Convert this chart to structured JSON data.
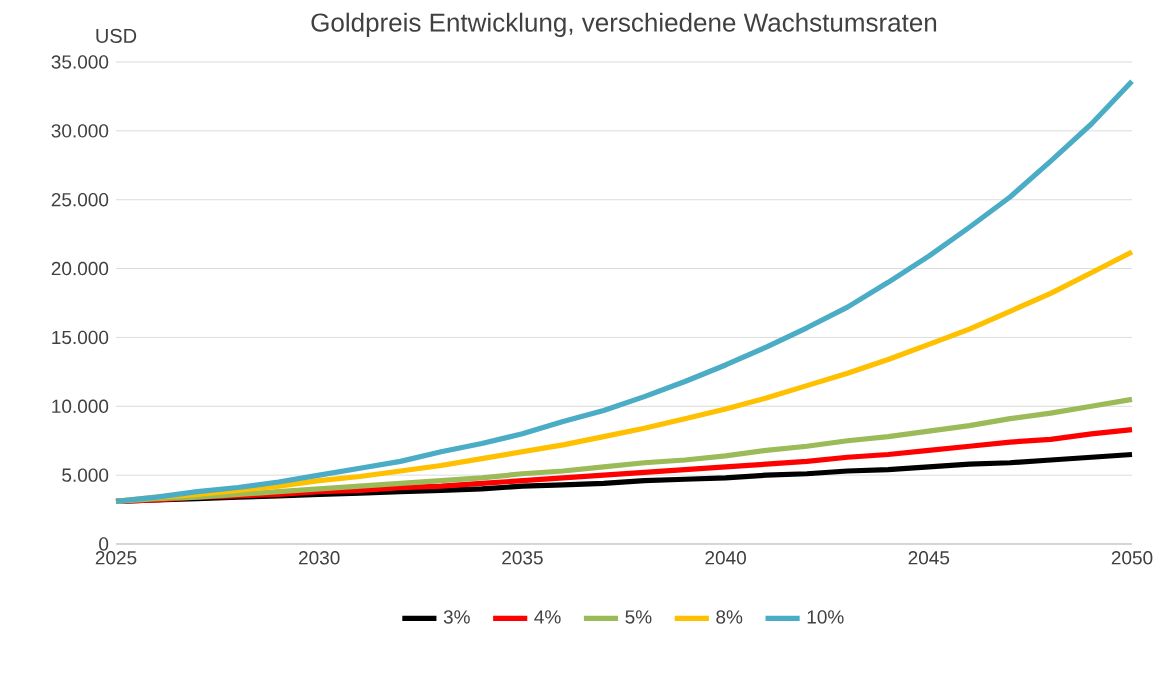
{
  "chart_data": {
    "type": "line",
    "title": "Goldpreis Entwicklung, verschiedene Wachstumsraten",
    "ylabel": "USD",
    "x": [
      2025,
      2026,
      2027,
      2028,
      2029,
      2030,
      2031,
      2032,
      2033,
      2034,
      2035,
      2036,
      2037,
      2038,
      2039,
      2040,
      2041,
      2042,
      2043,
      2044,
      2045,
      2046,
      2047,
      2048,
      2049,
      2050
    ],
    "series": [
      {
        "name": "3%",
        "color": "#000000",
        "values": [
          3100,
          3200,
          3300,
          3400,
          3500,
          3600,
          3700,
          3800,
          3900,
          4000,
          4200,
          4300,
          4400,
          4600,
          4700,
          4800,
          5000,
          5100,
          5300,
          5400,
          5600,
          5800,
          5900,
          6100,
          6300,
          6500
        ]
      },
      {
        "name": "4%",
        "color": "#ff0000",
        "values": [
          3100,
          3200,
          3400,
          3500,
          3600,
          3800,
          3900,
          4100,
          4200,
          4400,
          4600,
          4800,
          5000,
          5200,
          5400,
          5600,
          5800,
          6000,
          6300,
          6500,
          6800,
          7100,
          7400,
          7600,
          8000,
          8300
        ]
      },
      {
        "name": "5%",
        "color": "#9bbb59",
        "values": [
          3100,
          3300,
          3400,
          3600,
          3800,
          4000,
          4200,
          4400,
          4600,
          4800,
          5100,
          5300,
          5600,
          5900,
          6100,
          6400,
          6800,
          7100,
          7500,
          7800,
          8200,
          8600,
          9100,
          9500,
          10000,
          10500
        ]
      },
      {
        "name": "8%",
        "color": "#ffc000",
        "values": [
          3100,
          3400,
          3600,
          3900,
          4200,
          4600,
          4900,
          5300,
          5700,
          6200,
          6700,
          7200,
          7800,
          8400,
          9100,
          9800,
          10600,
          11500,
          12400,
          13400,
          14500,
          15600,
          16900,
          18200,
          19700,
          21200
        ]
      },
      {
        "name": "10%",
        "color": "#4bacc6",
        "values": [
          3100,
          3400,
          3800,
          4100,
          4500,
          5000,
          5500,
          6000,
          6700,
          7300,
          8000,
          8900,
          9700,
          10700,
          11800,
          13000,
          14300,
          15700,
          17200,
          19000,
          20900,
          23000,
          25200,
          27800,
          30500,
          33600
        ]
      }
    ],
    "xlim": [
      2025,
      2050
    ],
    "xticks": [
      2025,
      2030,
      2035,
      2040,
      2045,
      2050
    ],
    "ylim": [
      0,
      35000
    ],
    "yticks": [
      0,
      {
        "value": 5000,
        "label": "5.000"
      },
      {
        "value": 10000,
        "label": "10.000"
      },
      {
        "value": 15000,
        "label": "15.000"
      },
      {
        "value": 20000,
        "label": "20.000"
      },
      {
        "value": 25000,
        "label": "25.000"
      },
      {
        "value": 30000,
        "label": "30.000"
      },
      {
        "value": 35000,
        "label": "35.000"
      }
    ],
    "grid": "y",
    "legend": "bottom",
    "marker": "none",
    "line_style": "solid"
  }
}
